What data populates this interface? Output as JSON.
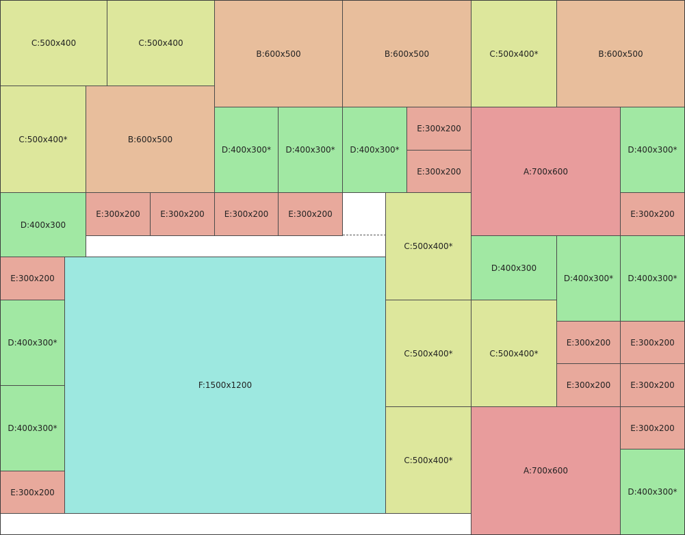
{
  "colors": {
    "A": "#e89c9c",
    "B": "#e8be9c",
    "C": "#dde79c",
    "D": "#a1e8a3",
    "E": "#e8a99c",
    "F": "#9de8e0"
  },
  "pieces": [
    {
      "type": "C",
      "label": "C:500x400"
    },
    {
      "type": "C",
      "label": "C:500x400"
    },
    {
      "type": "B",
      "label": "B:600x500"
    },
    {
      "type": "B",
      "label": "B:600x500"
    },
    {
      "type": "C",
      "label": "C:500x400*"
    },
    {
      "type": "B",
      "label": "B:600x500"
    },
    {
      "type": "C",
      "label": "C:500x400*"
    },
    {
      "type": "B",
      "label": "B:600x500"
    },
    {
      "type": "D",
      "label": "D:400x300*"
    },
    {
      "type": "D",
      "label": "D:400x300*"
    },
    {
      "type": "D",
      "label": "D:400x300*"
    },
    {
      "type": "E",
      "label": "E:300x200"
    },
    {
      "type": "E",
      "label": "E:300x200"
    },
    {
      "type": "A",
      "label": "A:700x600"
    },
    {
      "type": "D",
      "label": "D:400x300*"
    },
    {
      "type": "D",
      "label": "D:400x300"
    },
    {
      "type": "E",
      "label": "E:300x200"
    },
    {
      "type": "E",
      "label": "E:300x200"
    },
    {
      "type": "E",
      "label": "E:300x200"
    },
    {
      "type": "E",
      "label": "E:300x200"
    },
    {
      "type": "C",
      "label": "C:500x400*"
    },
    {
      "type": "E",
      "label": "E:300x200"
    },
    {
      "type": "E",
      "label": "E:300x200"
    },
    {
      "type": "D",
      "label": "D:400x300"
    },
    {
      "type": "D",
      "label": "D:400x300*"
    },
    {
      "type": "D",
      "label": "D:400x300*"
    },
    {
      "type": "F",
      "label": "F:1500x1200"
    },
    {
      "type": "D",
      "label": "D:400x300*"
    },
    {
      "type": "C",
      "label": "C:500x400*"
    },
    {
      "type": "C",
      "label": "C:500x400*"
    },
    {
      "type": "E",
      "label": "E:300x200"
    },
    {
      "type": "E",
      "label": "E:300x200"
    },
    {
      "type": "E",
      "label": "E:300x200"
    },
    {
      "type": "E",
      "label": "E:300x200"
    },
    {
      "type": "D",
      "label": "D:400x300*"
    },
    {
      "type": "C",
      "label": "C:500x400*"
    },
    {
      "type": "A",
      "label": "A:700x600"
    },
    {
      "type": "E",
      "label": "E:300x200"
    },
    {
      "type": "E",
      "label": "E:300x200"
    },
    {
      "type": "D",
      "label": "D:400x300*"
    }
  ]
}
